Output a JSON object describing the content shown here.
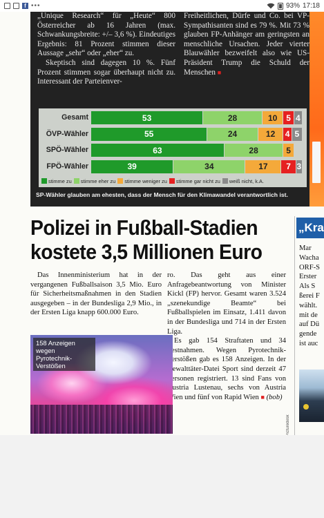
{
  "status_bar": {
    "icons": [
      "image-icon",
      "image-icon",
      "facebook-icon"
    ],
    "dots": "•••",
    "battery": "93%",
    "time": "17:18"
  },
  "dark_panel": {
    "col1": [
      "„Unique Research“ für „Heute“ 800 Österreicher ab 16 Jahren (max. Schwankungsbreite: +/– 3,6 %). Eindeutiges Ergebnis: 81 Prozent stimmen dieser Aussage „sehr“ oder „eher“ zu.",
      "Skeptisch sind dagegen 10 %. Fünf Prozent stimmen sogar überhaupt nicht zu. Interessant der Parteienver-"
    ],
    "col2": "Freiheitlichen, Dürfe und Co. bei VP-Sympathisanten sind es 79 %. Mit 73 % glauben FP-Anhänger am geringsten an menschliche Ursachen. Jeder vierter Blauwähler bezweifelt also wie US-Präsident Trump die Schuld der Menschen",
    "caption": "SP-Wähler glauben am ehesten, dass der Mensch für den Klimawandel verantwortlich ist."
  },
  "chart_data": {
    "type": "bar",
    "orientation": "horizontal-stacked",
    "categories": [
      "Gesamt",
      "ÖVP-Wähler",
      "SPÖ-Wähler",
      "FPÖ-Wähler"
    ],
    "series": [
      {
        "name": "stimme zu",
        "color": "#1f9a2a",
        "values": [
          53,
          55,
          63,
          39
        ]
      },
      {
        "name": "stimme eher zu",
        "color": "#8ed36a",
        "values": [
          28,
          24,
          28,
          34
        ]
      },
      {
        "name": "stimme weniger zu",
        "color": "#f4a93a",
        "values": [
          10,
          12,
          5,
          17
        ]
      },
      {
        "name": "stimme gar nicht zu",
        "color": "#e62020",
        "values": [
          5,
          4,
          0,
          7
        ]
      },
      {
        "name": "weiß nicht, k.A.",
        "color": "#8a8a8a",
        "values": [
          4,
          5,
          0,
          3
        ]
      }
    ],
    "value_labels": [
      [
        "53",
        "28",
        "10",
        "5",
        "4"
      ],
      [
        "55",
        "24",
        "12",
        "4",
        "5"
      ],
      [
        "63",
        "28",
        "5",
        "",
        ""
      ],
      [
        "39",
        "34",
        "17",
        "7",
        "3"
      ]
    ],
    "legend_position": "bottom"
  },
  "article": {
    "headline": "Polizei in Fußball-Stadien kostete 3,5 Millionen Euro",
    "col1": "Das Innenministerium hat in der vergangenen Fußballsaison 3,5 Mio. Euro für Sicherheitsmaßnahmen in den Stadien ausgegeben – in der Bundesliga 2,9 Mio., in der Ersten Liga knapp 600.000 Euro.",
    "col2_p1": "ro. Das geht aus einer Anfragebeantwortung von Minister Kickl (FP) hervor. Gesamt waren 3.524 „szenekundige Beamte“ bei Fußballspielen im Einsatz, 1.411 davon in der Bundesliga und 714 in der Ersten Liga.",
    "col2_p2": "Es gab 154 Straftaten und 34 Festnahmen. Wegen Pyrotechnik-Verstößen gab es 158 Anzeigen. In der Gewalttäter-Datei Sport sind derzeit 47 Personen registriert. 13 sind Fans von Austria Lustenau, sechs von Austria Wien und fünf von Rapid Wien",
    "byline": "(bob)",
    "photo_tag": "158 Anzeigen wegen Pyrotechnik-Verstößen",
    "photo_credit": "Foto: Picturedesk"
  },
  "side_column": {
    "head": "„Kra",
    "lines": [
      "Mar",
      "Wacha",
      "ORF-S",
      "Erster",
      "Als S",
      "ßerei F",
      "wählt.",
      "mit de",
      "auf Dü",
      "gende",
      "ist auc"
    ]
  }
}
